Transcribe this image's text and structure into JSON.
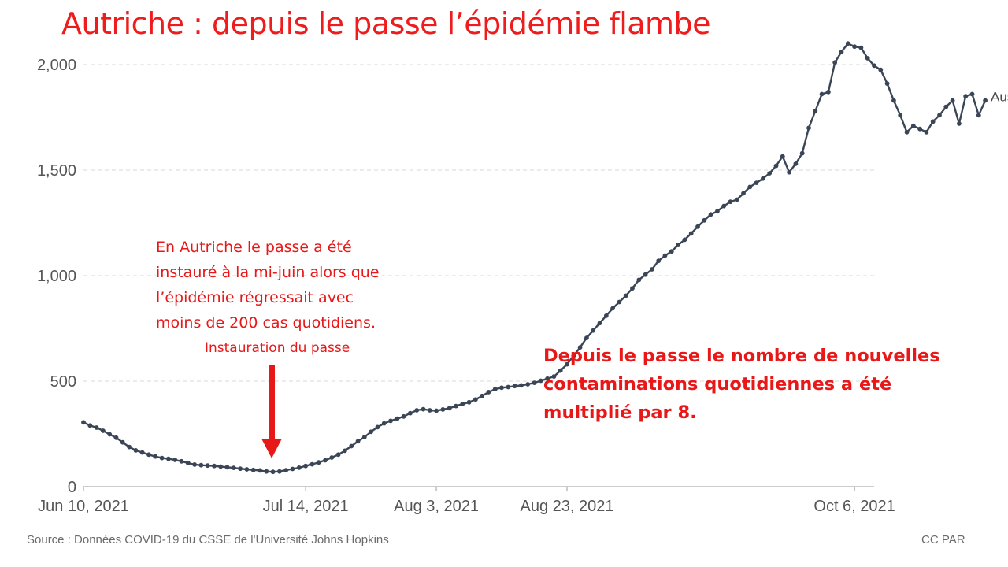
{
  "title": "Autriche : depuis le passe l’épidémie flambe",
  "annotations": {
    "left_lines": [
      "En Autriche le passe a été",
      "instauré à la mi-juin alors que",
      "l’épidémie régressait avec",
      "moins de 200 cas quotidiens."
    ],
    "arrow_label": "Instauration du passe",
    "right_lines": [
      "Depuis le passe le nombre de nouvelles",
      "contaminations quotidiennes a été",
      "multiplié par 8."
    ]
  },
  "source": "Source : Données COVID-19 du CSSE de l'Université Johns Hopkins",
  "credit": "CC PAR",
  "colors": {
    "title": "#ee1c1c",
    "annotation": "#e81818",
    "series": "#3a4556",
    "grid": "#d9d9d9"
  },
  "chart_data": {
    "type": "line",
    "x_start": "2021-06-10",
    "x_end": "2021-10-09",
    "x_ticks": [
      {
        "date": "2021-06-10",
        "label": "Jun 10, 2021"
      },
      {
        "date": "2021-07-14",
        "label": "Jul 14, 2021"
      },
      {
        "date": "2021-08-03",
        "label": "Aug 3, 2021"
      },
      {
        "date": "2021-08-23",
        "label": "Aug 23, 2021"
      },
      {
        "date": "2021-10-06",
        "label": "Oct 6, 2021"
      }
    ],
    "y_ticks": [
      {
        "value": 0,
        "label": "0"
      },
      {
        "value": 500,
        "label": "500"
      },
      {
        "value": 1000,
        "label": "1,000"
      },
      {
        "value": 1500,
        "label": "1,500"
      },
      {
        "value": 2000,
        "label": "2,000"
      }
    ],
    "ylim": [
      0,
      2000
    ],
    "grid": true,
    "series": [
      {
        "name": "Austria",
        "values": [
          305,
          290,
          280,
          265,
          248,
          232,
          210,
          188,
          172,
          162,
          152,
          143,
          136,
          132,
          127,
          120,
          112,
          105,
          102,
          100,
          98,
          95,
          92,
          89,
          85,
          82,
          79,
          77,
          72,
          70,
          72,
          78,
          84,
          90,
          98,
          106,
          115,
          125,
          138,
          152,
          170,
          192,
          215,
          235,
          260,
          282,
          300,
          312,
          322,
          333,
          348,
          362,
          367,
          362,
          360,
          366,
          372,
          382,
          392,
          400,
          413,
          430,
          448,
          462,
          469,
          472,
          477,
          480,
          485,
          492,
          502,
          512,
          522,
          550,
          580,
          620,
          660,
          705,
          740,
          775,
          810,
          845,
          875,
          905,
          940,
          980,
          1005,
          1030,
          1070,
          1095,
          1115,
          1145,
          1170,
          1200,
          1232,
          1262,
          1290,
          1305,
          1330,
          1350,
          1360,
          1390,
          1420,
          1440,
          1460,
          1485,
          1520,
          1565,
          1490,
          1530,
          1580,
          1700,
          1780,
          1860,
          1870,
          2010,
          2060,
          2100,
          2085,
          2080,
          2030,
          1995,
          1975,
          1910,
          1830,
          1760,
          1680,
          1710,
          1695,
          1680,
          1730,
          1760,
          1800,
          1830,
          1720,
          1850,
          1860,
          1760,
          1830
        ]
      }
    ]
  }
}
